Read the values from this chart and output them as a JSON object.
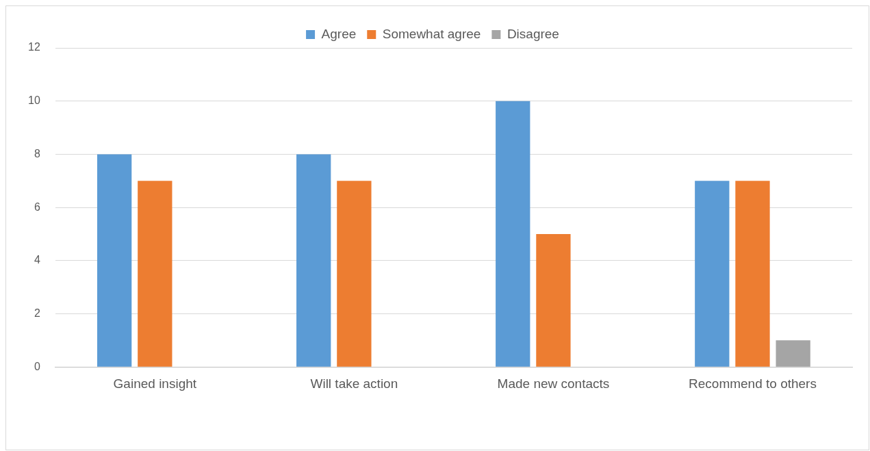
{
  "chart_data": {
    "type": "bar",
    "categories": [
      "Gained insight",
      "Will take action",
      "Made new contacts",
      "Recommend to others"
    ],
    "series": [
      {
        "name": "Agree",
        "color": "#5b9bd5",
        "values": [
          8,
          8,
          10,
          7
        ]
      },
      {
        "name": "Somewhat agree",
        "color": "#ed7d31",
        "values": [
          7,
          7,
          5,
          7
        ]
      },
      {
        "name": "Disagree",
        "color": "#a5a5a5",
        "values": [
          0,
          0,
          0,
          1
        ]
      }
    ],
    "ylim": [
      0,
      12
    ],
    "yticks": [
      0,
      2,
      4,
      6,
      8,
      10,
      12
    ],
    "grid": "y",
    "legend": "top"
  }
}
